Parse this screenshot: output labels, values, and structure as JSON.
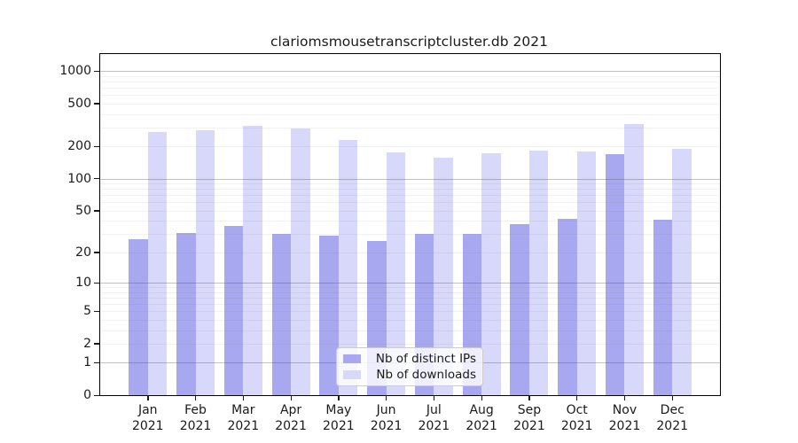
{
  "title": "clariomsmousetranscriptcluster.db 2021",
  "legend": {
    "items": [
      {
        "label": "Nb of distinct IPs",
        "color": "#a8a8f0"
      },
      {
        "label": "Nb of downloads",
        "color": "#d8d8fa"
      }
    ]
  },
  "chart_data": {
    "type": "bar",
    "title": "clariomsmousetranscriptcluster.db 2021",
    "scale": "log1p",
    "grid": "on",
    "legend_position": "lower center",
    "year": "2021",
    "categories": [
      "Jan",
      "Feb",
      "Mar",
      "Apr",
      "May",
      "Jun",
      "Jul",
      "Aug",
      "Sep",
      "Oct",
      "Nov",
      "Dec"
    ],
    "series": [
      {
        "name": "Nb of distinct IPs",
        "color": "#a8a8f0",
        "values": [
          27,
          31,
          36,
          30,
          29,
          26,
          30,
          30,
          37,
          42,
          170,
          41
        ]
      },
      {
        "name": "Nb of downloads",
        "color": "#d8d8fa",
        "values": [
          270,
          285,
          310,
          295,
          230,
          176,
          158,
          172,
          184,
          180,
          320,
          190
        ]
      }
    ],
    "y_ticks": [
      0,
      1,
      2,
      5,
      10,
      20,
      50,
      100,
      200,
      500,
      1000
    ],
    "ylim": [
      0,
      1440
    ],
    "grid_major": [
      1,
      10,
      100,
      1000
    ],
    "grid_minor": [
      2,
      3,
      4,
      5,
      6,
      7,
      8,
      9,
      20,
      30,
      40,
      50,
      60,
      70,
      80,
      90,
      200,
      300,
      400,
      500,
      600,
      700,
      800,
      900
    ]
  }
}
